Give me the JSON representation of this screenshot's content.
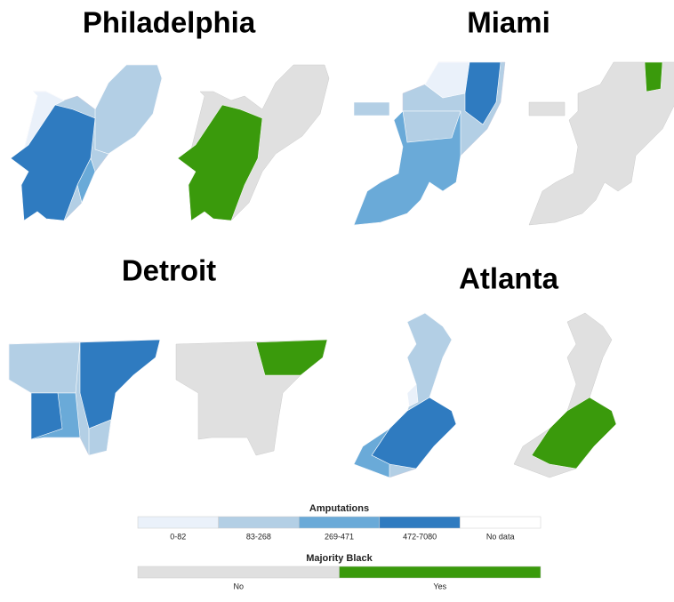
{
  "cities": [
    {
      "name": "Philadelphia"
    },
    {
      "name": "Miami"
    },
    {
      "name": "Detroit"
    },
    {
      "name": "Atlanta"
    }
  ],
  "legends": [
    {
      "title": "Amputations",
      "items": [
        {
          "label": "0-82",
          "color": "#eaf1fa"
        },
        {
          "label": "83-268",
          "color": "#b3cfe5"
        },
        {
          "label": "269-471",
          "color": "#6aaad8"
        },
        {
          "label": "472-7080",
          "color": "#2f7bc0"
        },
        {
          "label": "No data",
          "color": "#ffffff"
        }
      ]
    },
    {
      "title": "Majority Black",
      "items": [
        {
          "label": "No",
          "color": "#e0e0e0"
        },
        {
          "label": "Yes",
          "color": "#3a9a0c"
        }
      ]
    }
  ]
}
